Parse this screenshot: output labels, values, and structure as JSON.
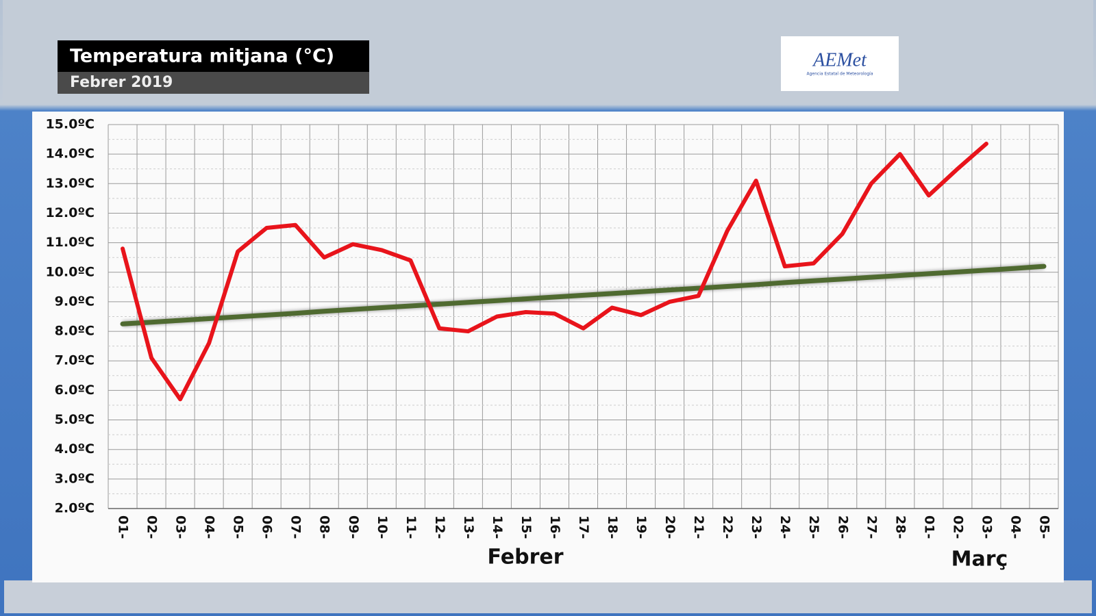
{
  "chart_data": {
    "type": "line",
    "title": "Temperatura mitjana (°C)",
    "subtitle": "Febrer 2019",
    "annotations": [
      "Febrer",
      "Març"
    ],
    "categories": [
      "01-",
      "02-",
      "03-",
      "04-",
      "05-",
      "06-",
      "07-",
      "08-",
      "09-",
      "10-",
      "11-",
      "12-",
      "13-",
      "14-",
      "15-",
      "16-",
      "17-",
      "18-",
      "19-",
      "20-",
      "21-",
      "22-",
      "23-",
      "24-",
      "25-",
      "26-",
      "27-",
      "28-",
      "01-",
      "02-",
      "03-",
      "04-",
      "05-"
    ],
    "series": [
      {
        "color": "#4f6a30",
        "values": [
          8.25,
          8.31,
          8.37,
          8.43,
          8.49,
          8.55,
          8.61,
          8.68,
          8.74,
          8.8,
          8.86,
          8.92,
          8.98,
          9.04,
          9.1,
          9.16,
          9.22,
          9.28,
          9.34,
          9.4,
          9.46,
          9.52,
          9.58,
          9.65,
          9.71,
          9.77,
          9.83,
          9.89,
          9.95,
          10.01,
          10.07,
          10.13,
          10.2
        ]
      },
      {
        "color": "#e8141b",
        "values": [
          10.8,
          7.1,
          5.7,
          7.6,
          10.7,
          11.5,
          11.6,
          10.5,
          10.95,
          10.75,
          10.4,
          8.1,
          8.0,
          8.5,
          8.65,
          8.6,
          8.1,
          8.8,
          8.55,
          9.0,
          9.2,
          11.4,
          13.1,
          10.2,
          10.3,
          11.3,
          13.0,
          14.0,
          12.6,
          13.5,
          14.35,
          null,
          null
        ]
      }
    ],
    "ylim": [
      2,
      15
    ],
    "yticks": [
      {
        "value": 2,
        "label": "2.0ºC"
      },
      {
        "value": 3,
        "label": "3.0ºC"
      },
      {
        "value": 4,
        "label": "4.0ºC"
      },
      {
        "value": 5,
        "label": "5.0ºC"
      },
      {
        "value": 6,
        "label": "6.0ºC"
      },
      {
        "value": 7,
        "label": "7.0ºC"
      },
      {
        "value": 8,
        "label": "8.0ºC"
      },
      {
        "value": 9,
        "label": "9.0ºC"
      },
      {
        "value": 10,
        "label": "10.0ºC"
      },
      {
        "value": 11,
        "label": "11.0ºC"
      },
      {
        "value": 12,
        "label": "12.0ºC"
      },
      {
        "value": 13,
        "label": "13.0ºC"
      },
      {
        "value": 14,
        "label": "14.0ºC"
      },
      {
        "value": 15,
        "label": "15.0ºC"
      }
    ],
    "grid": true
  },
  "logo": {
    "name": "AEMet",
    "caption": "Agencia Estatal de Meteorología"
  }
}
